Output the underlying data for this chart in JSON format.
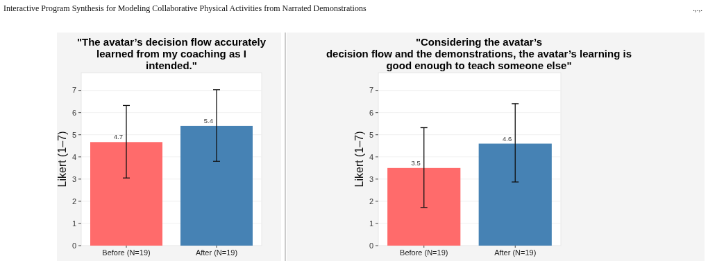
{
  "chart_data": [
    {
      "type": "bar",
      "title": "\"The avatar’s decision flow accurately\nlearned from my coaching as I\nintended.\"",
      "ylabel": "Likert (1–7)",
      "categories": [
        "Before (N=19)",
        "After (N=19)"
      ],
      "values": [
        4.67,
        5.4
      ],
      "colors": [
        "#ff6b6b",
        "#4682b4"
      ],
      "errors": [
        [
          3.05,
          6.32
        ],
        [
          3.8,
          7.03
        ]
      ],
      "value_labels": [
        "4.7",
        "5.4"
      ],
      "ylim": [
        0,
        7.8
      ],
      "yticks": [
        0,
        1,
        2,
        3,
        4,
        5,
        6,
        7
      ],
      "grid": "y",
      "annotations": [
        "Interactive Program Synthesis for Modeling Collaborative Physical Activities from Narrated Demonstrations",
        ".,.,."
      ]
    },
    {
      "type": "bar",
      "title": "\"Considering the avatar’s\ndecision flow and the demonstrations, the avatar’s learning is\ngood enough to teach someone else\"",
      "ylabel": "Likert (1–7)",
      "categories": [
        "Before (N=19)",
        "After (N=19)"
      ],
      "values": [
        3.5,
        4.6
      ],
      "colors": [
        "#ff6b6b",
        "#4682b4"
      ],
      "errors": [
        [
          1.72,
          5.32
        ],
        [
          2.87,
          6.4
        ]
      ],
      "value_labels": [
        "3.5",
        "4.6"
      ],
      "ylim": [
        0,
        7.8
      ],
      "yticks": [
        0,
        1,
        2,
        3,
        4,
        5,
        6,
        7
      ],
      "grid": "y"
    }
  ]
}
